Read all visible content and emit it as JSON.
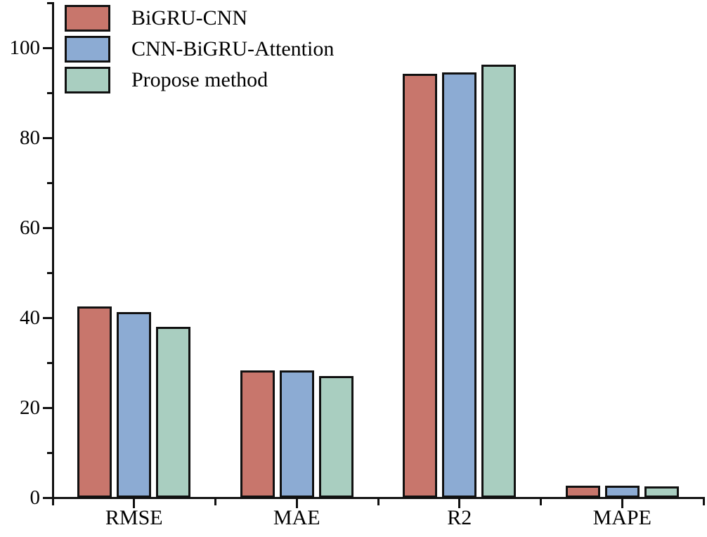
{
  "figure": {
    "background": "#ffffff"
  },
  "chart_data": {
    "type": "bar",
    "title": "",
    "xlabel": "",
    "ylabel": "",
    "categories": [
      "RMSE",
      "MAE",
      "R2",
      "MAPE"
    ],
    "series": [
      {
        "name": "BiGRU-CNN",
        "color": "#C8766C",
        "values": [
          42.2,
          28.0,
          94.0,
          2.5
        ]
      },
      {
        "name": "CNN-BiGRU-Attention",
        "color": "#8CABD3",
        "values": [
          41.0,
          28.0,
          94.3,
          2.5
        ]
      },
      {
        "name": "Propose method",
        "color": "#A9CEC0",
        "values": [
          37.8,
          26.8,
          96.0,
          2.3
        ]
      }
    ],
    "ylim": [
      0,
      110
    ],
    "yticks_major": [
      0,
      20,
      40,
      60,
      80,
      100
    ],
    "yticks_minor": [
      10,
      30,
      50,
      70,
      90,
      110
    ],
    "grid": false,
    "legend_position": "top-left",
    "axis_color": "#111111",
    "bar_border_color": "#111111"
  }
}
